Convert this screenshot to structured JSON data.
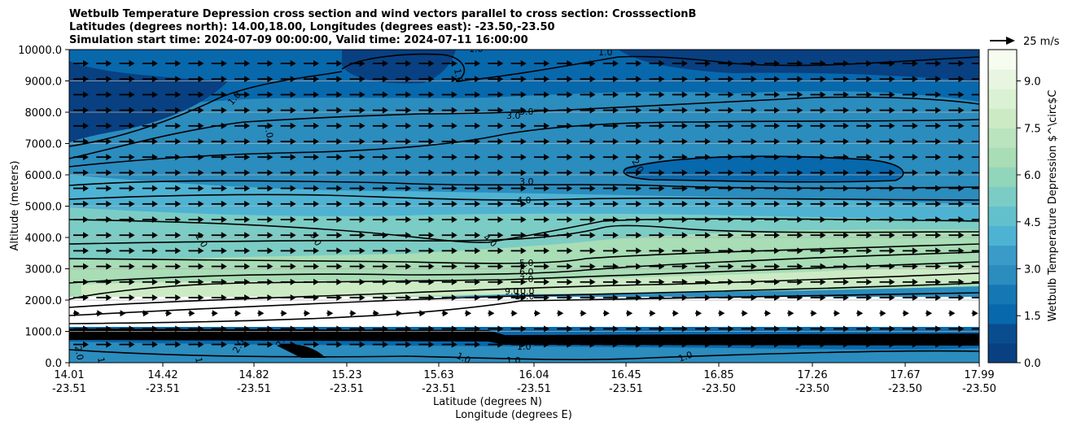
{
  "chart_data": {
    "type": "contourf",
    "title_lines": [
      "Wetbulb Temperature Depression cross section and wind vectors parallel to cross section: CrosssectionB",
      "Latitudes (degrees north): 14.00,18.00, Longitudes (degrees east): -23.50,-23.50",
      "Simulation start time: 2024-07-09 00:00:00, Valid time: 2024-07-11 16:00:00"
    ],
    "xlabel_lat": "Latitude (degrees N)",
    "xlabel_lon": "Longitude (degrees E)",
    "ylabel": "Altitude (meters)",
    "ylim": [
      0,
      10000
    ],
    "yticks": [
      "0.0",
      "1000.0",
      "2000.0",
      "3000.0",
      "4000.0",
      "5000.0",
      "6000.0",
      "7000.0",
      "8000.0",
      "9000.0",
      "10000.0"
    ],
    "xticks_lat": [
      "14.01",
      "14.42",
      "14.82",
      "15.23",
      "15.63",
      "16.04",
      "16.45",
      "16.85",
      "17.26",
      "17.67",
      "17.99"
    ],
    "xticks_lon": [
      "-23.51",
      "-23.51",
      "-23.51",
      "-23.51",
      "-23.51",
      "-23.51",
      "-23.51",
      "-23.50",
      "-23.50",
      "-23.50",
      "-23.50"
    ],
    "grid": "horizontal",
    "colorbar": {
      "label": "Wetbulb Temperature Depression $^\\circ$C",
      "ticks": [
        "0.0",
        "1.5",
        "3.0",
        "4.5",
        "6.0",
        "7.5",
        "9.0"
      ],
      "range": [
        0,
        10
      ],
      "colormap": "GnBu_r"
    },
    "quiver_key": "25 m/s",
    "contour_labels": [
      "1.0",
      "2.0",
      "3.0",
      "4.0",
      "5.0",
      "6.0",
      "7.0",
      "9.0",
      "10.0"
    ]
  }
}
